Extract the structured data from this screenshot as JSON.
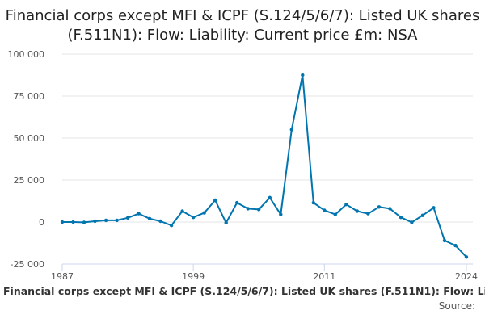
{
  "chart_data": {
    "type": "line",
    "title": "Financial corps except MFI & ICPF (S.124/5/6/7): Listed UK shares (F.511N1): Flow: Liability: Current price £m: NSA",
    "xlabel": "",
    "ylabel": "",
    "ylim": [
      -25000,
      100000
    ],
    "xlim": [
      1987,
      2024
    ],
    "yticks": [
      -25000,
      0,
      25000,
      50000,
      75000,
      100000
    ],
    "ytick_labels": [
      "-25 000",
      "0",
      "25 000",
      "50 000",
      "75 000",
      "100 000"
    ],
    "xticks": [
      1987,
      1999,
      2011,
      2024
    ],
    "xtick_labels": [
      "1987",
      "1999",
      "2011",
      "2024"
    ],
    "grid": true,
    "color": "#0075b0",
    "series": [
      {
        "name": "Financial corps except MFI & ICPF (S.124/5/6/7): Listed UK shares (F.511N1): Flow: Liability: Current",
        "x": [
          1987,
          1988,
          1989,
          1990,
          1991,
          1992,
          1993,
          1994,
          1995,
          1996,
          1997,
          1998,
          1999,
          2000,
          2001,
          2002,
          2003,
          2004,
          2005,
          2006,
          2007,
          2008,
          2009,
          2010,
          2011,
          2012,
          2013,
          2014,
          2015,
          2016,
          2017,
          2018,
          2019,
          2020,
          2021,
          2022,
          2023,
          2024
        ],
        "values": [
          0,
          0,
          -200,
          500,
          1000,
          1000,
          2500,
          5000,
          2000,
          500,
          -2000,
          6500,
          2800,
          5500,
          13000,
          -500,
          11500,
          8000,
          7500,
          14500,
          4500,
          55000,
          87500,
          11500,
          7000,
          4500,
          10500,
          6500,
          5000,
          9000,
          8000,
          2800,
          -200,
          4000,
          8500,
          -11000,
          -14000,
          -20800
        ]
      }
    ]
  },
  "source_label": "Source:"
}
